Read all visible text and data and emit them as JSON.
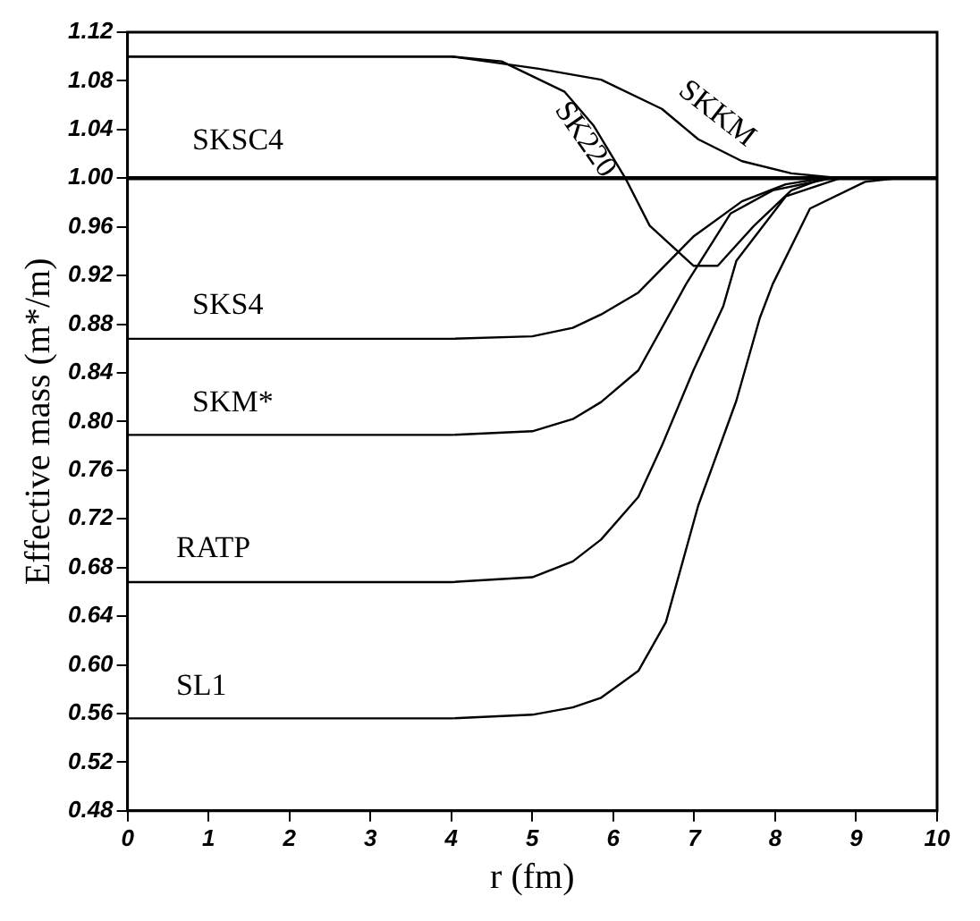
{
  "chart_data": {
    "type": "line",
    "xlabel": "r (fm)",
    "ylabel": "Effective mass (m*/m)",
    "xlim": [
      0,
      10
    ],
    "xticks": [
      0,
      1,
      2,
      3,
      4,
      5,
      6,
      7,
      8,
      9,
      10
    ],
    "ylim": [
      0.48,
      1.12
    ],
    "yticks": [
      0.48,
      0.52,
      0.56,
      {
        "value": 0.6,
        "label": "0.60"
      },
      0.64,
      0.68,
      0.72,
      0.76,
      {
        "value": 0.8,
        "label": "0.80"
      },
      0.84,
      0.88,
      0.92,
      0.96,
      {
        "value": 1.0,
        "label": "1.00"
      },
      1.04,
      1.08,
      1.12
    ],
    "grid": false,
    "legend": "left",
    "marker": "none",
    "line_style": "solid",
    "series": [
      {
        "name": "SKSC4",
        "color": "#000000",
        "x": [
          0,
          10
        ],
        "values": [
          1.0,
          1.0
        ]
      },
      {
        "name": "SKKM",
        "color": "#000000",
        "x": [
          0,
          4,
          5.08,
          5.85,
          6.6,
          7.05,
          7.59,
          8.2,
          8.8,
          10
        ],
        "values": [
          1.1,
          1.1,
          1.09,
          1.081,
          1.057,
          1.032,
          1.014,
          1.004,
          1.0,
          1.0
        ]
      },
      {
        "name": "SK220",
        "color": "#000000",
        "x": [
          0,
          4,
          4.62,
          5.4,
          5.76,
          6.15,
          6.45,
          6.99,
          7.29,
          7.74,
          8.2,
          8.6,
          10
        ],
        "values": [
          1.1,
          1.1,
          1.096,
          1.071,
          1.043,
          1.0,
          0.961,
          0.928,
          0.928,
          0.961,
          0.99,
          1.0,
          1.0
        ]
      },
      {
        "name": "SKS4",
        "color": "#000000",
        "x": [
          0,
          4,
          5,
          5.5,
          5.85,
          6.31,
          6.99,
          7.59,
          8.13,
          8.6,
          10
        ],
        "values": [
          0.868,
          0.868,
          0.87,
          0.877,
          0.888,
          0.906,
          0.952,
          0.981,
          0.995,
          1.0,
          1.0
        ]
      },
      {
        "name": "SKM*",
        "color": "#000000",
        "x": [
          0,
          4,
          5,
          5.5,
          5.85,
          6.31,
          6.9,
          7.45,
          7.97,
          8.7,
          10
        ],
        "values": [
          0.789,
          0.789,
          0.792,
          0.802,
          0.816,
          0.842,
          0.913,
          0.971,
          0.99,
          1.0,
          1.0
        ]
      },
      {
        "name": "RATP",
        "color": "#000000",
        "x": [
          0,
          4,
          5,
          5.5,
          5.85,
          6.31,
          6.6,
          6.99,
          7.36,
          7.52,
          8.13,
          8.8,
          10
        ],
        "values": [
          0.668,
          0.668,
          0.672,
          0.685,
          0.703,
          0.738,
          0.78,
          0.842,
          0.895,
          0.932,
          0.985,
          1.0,
          1.0
        ]
      },
      {
        "name": "SL1",
        "color": "#000000",
        "x": [
          0,
          4,
          5,
          5.5,
          5.85,
          6.31,
          6.65,
          7.05,
          7.52,
          7.81,
          7.97,
          8.43,
          9.11,
          9.5,
          10
        ],
        "values": [
          0.556,
          0.556,
          0.559,
          0.565,
          0.573,
          0.595,
          0.635,
          0.731,
          0.817,
          0.885,
          0.913,
          0.975,
          0.997,
          1.0,
          1.0
        ]
      }
    ]
  }
}
